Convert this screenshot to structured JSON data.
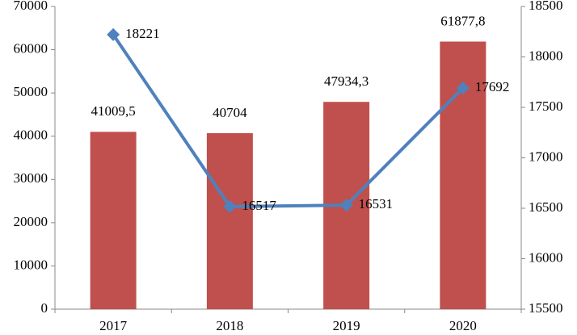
{
  "chart_data": {
    "type": "bar",
    "categories": [
      "2017",
      "2018",
      "2019",
      "2020"
    ],
    "series": [
      {
        "type": "bar",
        "color": "#c0504d",
        "values": [
          41009.5,
          40704,
          47934.3,
          61877.8
        ],
        "value_labels": [
          "41009,5",
          "40704",
          "47934,3",
          "61877,8"
        ]
      },
      {
        "type": "line",
        "axis": "y2",
        "color": "#4f81bd",
        "values": [
          18221,
          16517,
          16531,
          17692
        ]
      }
    ],
    "ylim": [
      0,
      70000
    ],
    "yticks": [
      0,
      10000,
      20000,
      30000,
      40000,
      50000,
      60000,
      70000
    ],
    "y2lim": [
      15500,
      18500
    ],
    "y2ticks": [
      15500,
      16000,
      16500,
      17000,
      17500,
      18000,
      18500
    ],
    "grid": false
  }
}
